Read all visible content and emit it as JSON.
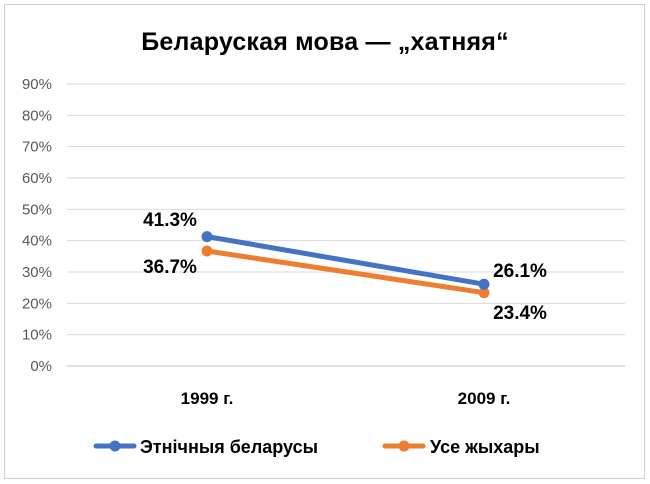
{
  "chart_data": {
    "type": "line",
    "title": "Беларуская мова — „хатняя“",
    "categories": [
      "1999 г.",
      "2009 г."
    ],
    "series": [
      {
        "name": "Этнічныя беларусы",
        "values": [
          41.3,
          26.1
        ],
        "labels": [
          "41.3%",
          "26.1%"
        ],
        "color": "#4472C4"
      },
      {
        "name": "Усе жыхары",
        "values": [
          36.7,
          23.4
        ],
        "labels": [
          "36.7%",
          "23.4%"
        ],
        "color": "#ED7D31"
      }
    ],
    "y_ticks": [
      "0%",
      "10%",
      "20%",
      "30%",
      "40%",
      "50%",
      "60%",
      "70%",
      "80%",
      "90%"
    ],
    "ylim": [
      0,
      90
    ],
    "grid": true,
    "legend_position": "bottom"
  }
}
